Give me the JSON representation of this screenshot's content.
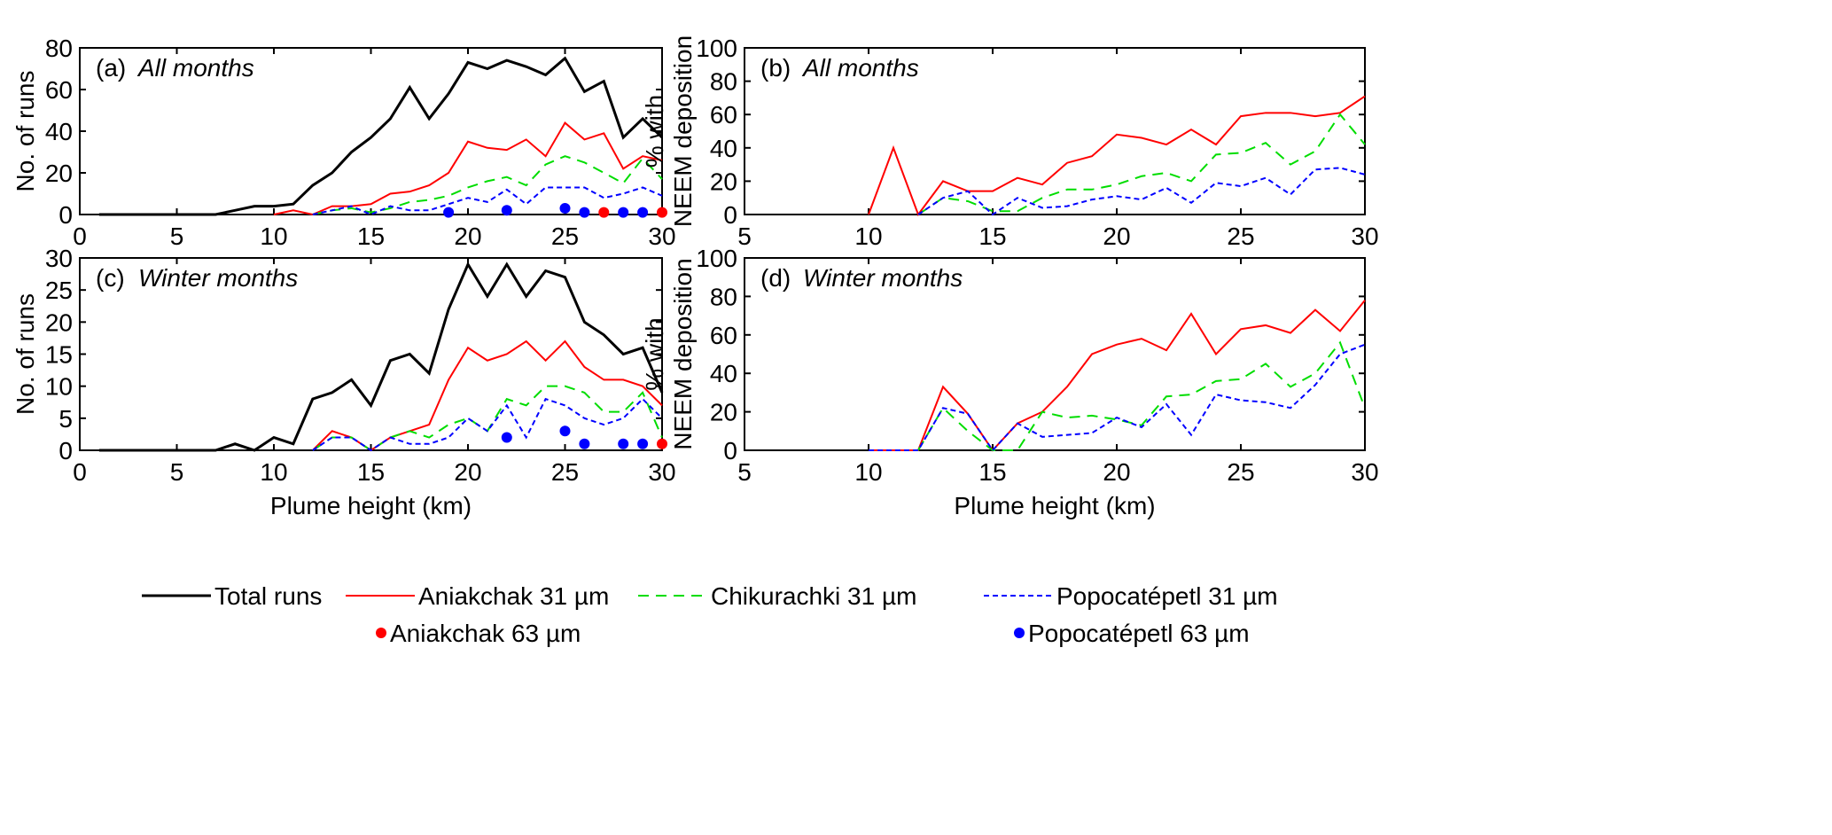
{
  "chart_data": [
    {
      "type": "line",
      "panel": "(a)",
      "title": "All months",
      "ylabel": "No. of runs",
      "xlabel": "",
      "xlim": [
        0,
        30
      ],
      "ylim": [
        0,
        80
      ],
      "xticks": [
        0,
        5,
        10,
        15,
        20,
        25,
        30
      ],
      "yticks": [
        0,
        20,
        40,
        60,
        80
      ],
      "series": [
        {
          "name": "Total runs",
          "x": [
            1,
            2,
            3,
            4,
            5,
            6,
            7,
            8,
            9,
            10,
            11,
            12,
            13,
            14,
            15,
            16,
            17,
            18,
            19,
            20,
            21,
            22,
            23,
            24,
            25,
            26,
            27,
            28,
            29,
            30
          ],
          "values": [
            0,
            0,
            0,
            0,
            0,
            0,
            0,
            2,
            4,
            4,
            5,
            14,
            20,
            30,
            37,
            46,
            61,
            46,
            58,
            73,
            70,
            74,
            71,
            67,
            75,
            59,
            64,
            37,
            46,
            37
          ]
        },
        {
          "name": "Aniakchak 31 µm",
          "x": [
            10,
            11,
            12,
            13,
            14,
            15,
            16,
            17,
            18,
            19,
            20,
            21,
            22,
            23,
            24,
            25,
            26,
            27,
            28,
            29,
            30
          ],
          "values": [
            0,
            2,
            0,
            4,
            4,
            5,
            10,
            11,
            14,
            20,
            35,
            32,
            31,
            36,
            28,
            44,
            36,
            39,
            22,
            28,
            26
          ]
        },
        {
          "name": "Chikurachki 31 µm",
          "x": [
            12,
            13,
            14,
            15,
            16,
            17,
            18,
            19,
            20,
            21,
            22,
            23,
            24,
            25,
            26,
            27,
            28,
            29,
            30
          ],
          "values": [
            0,
            2,
            3,
            1,
            3,
            6,
            7,
            9,
            13,
            16,
            18,
            14,
            24,
            28,
            25,
            20,
            15,
            27,
            17
          ]
        },
        {
          "name": "Popocatépetl 31 µm",
          "x": [
            12,
            13,
            14,
            15,
            16,
            17,
            18,
            19,
            20,
            21,
            22,
            23,
            24,
            25,
            26,
            27,
            28,
            29,
            30
          ],
          "values": [
            0,
            2,
            4,
            0,
            4,
            2,
            2,
            5,
            8,
            6,
            12,
            5,
            13,
            13,
            13,
            8,
            10,
            13,
            9
          ]
        },
        {
          "name": "Aniakchak 63 µm",
          "x": [
            27,
            30
          ],
          "values": [
            1,
            1
          ]
        },
        {
          "name": "Popocatépetl 63 µm",
          "x": [
            19,
            22,
            25,
            26,
            28,
            29
          ],
          "values": [
            1,
            2,
            3,
            1,
            1,
            1
          ]
        }
      ]
    },
    {
      "type": "line",
      "panel": "(b)",
      "title": "All months",
      "ylabel": "% with NEEM deposition",
      "xlabel": "",
      "xlim": [
        5,
        30
      ],
      "ylim": [
        0,
        100
      ],
      "xticks": [
        5,
        10,
        15,
        20,
        25,
        30
      ],
      "yticks": [
        0,
        20,
        40,
        60,
        80,
        100
      ],
      "series": [
        {
          "name": "Aniakchak 31 µm",
          "x": [
            10,
            11,
            12,
            13,
            14,
            15,
            16,
            17,
            18,
            19,
            20,
            21,
            22,
            23,
            24,
            25,
            26,
            27,
            28,
            29,
            30
          ],
          "values": [
            0,
            40,
            0,
            20,
            14,
            14,
            22,
            18,
            31,
            35,
            48,
            46,
            42,
            51,
            42,
            59,
            61,
            61,
            59,
            61,
            71
          ]
        },
        {
          "name": "Chikurachki 31 µm",
          "x": [
            12,
            13,
            14,
            15,
            16,
            17,
            18,
            19,
            20,
            21,
            22,
            23,
            24,
            25,
            26,
            27,
            28,
            29,
            30
          ],
          "values": [
            0,
            10,
            8,
            2,
            2,
            10,
            15,
            15,
            18,
            23,
            25,
            20,
            36,
            37,
            43,
            30,
            38,
            60,
            42
          ]
        },
        {
          "name": "Popocatépetl 31 µm",
          "x": [
            12,
            13,
            14,
            15,
            16,
            17,
            18,
            19,
            20,
            21,
            22,
            23,
            24,
            25,
            26,
            27,
            28,
            29,
            30
          ],
          "values": [
            0,
            10,
            14,
            0,
            10,
            4,
            5,
            9,
            11,
            9,
            16,
            7,
            19,
            17,
            22,
            12,
            27,
            28,
            24
          ]
        }
      ]
    },
    {
      "type": "line",
      "panel": "(c)",
      "title": "Winter months",
      "ylabel": "No. of runs",
      "xlabel": "Plume height (km)",
      "xlim": [
        0,
        30
      ],
      "ylim": [
        0,
        30
      ],
      "xticks": [
        0,
        5,
        10,
        15,
        20,
        25,
        30
      ],
      "yticks": [
        0,
        5,
        10,
        15,
        20,
        25,
        30
      ],
      "series": [
        {
          "name": "Total runs",
          "x": [
            1,
            2,
            3,
            4,
            5,
            6,
            7,
            8,
            9,
            10,
            11,
            12,
            13,
            14,
            15,
            16,
            17,
            18,
            19,
            20,
            21,
            22,
            23,
            24,
            25,
            26,
            27,
            28,
            29,
            30
          ],
          "values": [
            0,
            0,
            0,
            0,
            0,
            0,
            0,
            1,
            0,
            2,
            1,
            8,
            9,
            11,
            7,
            14,
            15,
            12,
            22,
            29,
            24,
            29,
            24,
            28,
            27,
            20,
            18,
            15,
            16,
            9
          ]
        },
        {
          "name": "Aniakchak 31 µm",
          "x": [
            12,
            13,
            14,
            15,
            16,
            17,
            18,
            19,
            20,
            21,
            22,
            23,
            24,
            25,
            26,
            27,
            28,
            29,
            30
          ],
          "values": [
            0,
            3,
            2,
            0,
            2,
            3,
            4,
            11,
            16,
            14,
            15,
            17,
            14,
            17,
            13,
            11,
            11,
            10,
            7
          ]
        },
        {
          "name": "Chikurachki 31 µm",
          "x": [
            12,
            13,
            14,
            15,
            16,
            17,
            18,
            19,
            20,
            21,
            22,
            23,
            24,
            25,
            26,
            27,
            28,
            29,
            30
          ],
          "values": [
            0,
            2,
            2,
            0,
            2,
            3,
            2,
            4,
            5,
            3,
            8,
            7,
            10,
            10,
            9,
            6,
            6,
            9,
            2
          ]
        },
        {
          "name": "Popocatépetl 31 µm",
          "x": [
            12,
            13,
            14,
            15,
            16,
            17,
            18,
            19,
            20,
            21,
            22,
            23,
            24,
            25,
            26,
            27,
            28,
            29,
            30
          ],
          "values": [
            0,
            2,
            2,
            0,
            2,
            1,
            1,
            2,
            5,
            3,
            7,
            2,
            8,
            7,
            5,
            4,
            5,
            8,
            5
          ]
        },
        {
          "name": "Aniakchak 63 µm",
          "x": [
            30
          ],
          "values": [
            1
          ]
        },
        {
          "name": "Popocatépetl 63 µm",
          "x": [
            22,
            25,
            26,
            28,
            29
          ],
          "values": [
            2,
            3,
            1,
            1,
            1
          ]
        }
      ]
    },
    {
      "type": "line",
      "panel": "(d)",
      "title": "Winter months",
      "ylabel": "% with NEEM deposition",
      "xlabel": "Plume height (km)",
      "xlim": [
        5,
        30
      ],
      "ylim": [
        0,
        100
      ],
      "xticks": [
        5,
        10,
        15,
        20,
        25,
        30
      ],
      "yticks": [
        0,
        20,
        40,
        60,
        80,
        100
      ],
      "series": [
        {
          "name": "Aniakchak 31 µm",
          "x": [
            10,
            11,
            12,
            13,
            14,
            15,
            16,
            17,
            18,
            19,
            20,
            21,
            22,
            23,
            24,
            25,
            26,
            27,
            28,
            29,
            30
          ],
          "values": [
            0,
            0,
            0,
            33,
            19,
            0,
            14,
            20,
            33,
            50,
            55,
            58,
            52,
            71,
            50,
            63,
            65,
            61,
            73,
            62,
            78
          ]
        },
        {
          "name": "Chikurachki 31 µm",
          "x": [
            12,
            13,
            14,
            15,
            16,
            17,
            18,
            19,
            20,
            21,
            22,
            23,
            24,
            25,
            26,
            27,
            28,
            29,
            30
          ],
          "values": [
            0,
            22,
            10,
            0,
            0,
            20,
            17,
            18,
            16,
            13,
            28,
            29,
            36,
            37,
            45,
            33,
            40,
            56,
            22
          ]
        },
        {
          "name": "Popocatépetl 31 µm",
          "x": [
            10,
            11,
            12,
            13,
            14,
            15,
            16,
            17,
            18,
            19,
            20,
            21,
            22,
            23,
            24,
            25,
            26,
            27,
            28,
            29,
            30
          ],
          "values": [
            0,
            0,
            0,
            22,
            19,
            0,
            14,
            7,
            8,
            9,
            17,
            12,
            24,
            8,
            29,
            26,
            25,
            22,
            34,
            50,
            55
          ]
        }
      ]
    }
  ],
  "styles": {
    "Total runs": {
      "color": "#000000",
      "dash": ""
    },
    "Aniakchak 31 µm": {
      "color": "#ff0000",
      "dash": ""
    },
    "Chikurachki 31 µm": {
      "color": "#00dd00",
      "dash": "12,8"
    },
    "Popocatépetl 31 µm": {
      "color": "#0000ff",
      "dash": "6,4"
    },
    "Aniakchak 63 µm": {
      "color": "#ff0000",
      "marker": "dot"
    },
    "Popocatépetl 63 µm": {
      "color": "#0000ff",
      "marker": "dot"
    }
  },
  "legend": {
    "placement": "bottom",
    "items": [
      "Total runs",
      "Aniakchak 31 µm",
      "Chikurachki 31 µm",
      "Popocatépetl 31 µm",
      "Aniakchak 63 µm",
      "Popocatépetl 63 µm"
    ]
  }
}
